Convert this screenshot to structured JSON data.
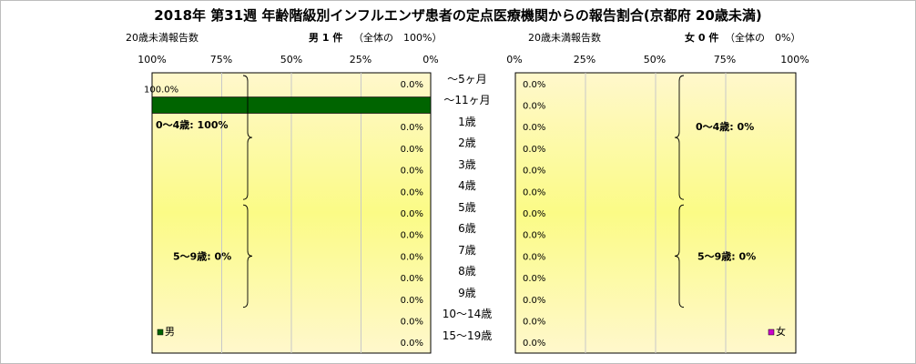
{
  "title": "2018年 第31週 年齢階級別インフルエンザ患者の定点医療機関からの報告割合(京都府 20歳未満)",
  "left_header": {
    "caption": "20歳未満報告数",
    "sex_count": "男 1 件",
    "total_share": "（全体の　100%）"
  },
  "right_header": {
    "caption": "20歳未満報告数",
    "sex_count": "女 0 件",
    "total_share": "（全体の　0%）"
  },
  "colors": {
    "male": "#006400",
    "female": "#cc00cc",
    "panel_edge": "#fff8cc",
    "panel_center": "#fbfb86",
    "grid": "#c8c8c8"
  },
  "chart_data": [
    {
      "type": "bar",
      "orientation": "horizontal",
      "direction": "right-to-left",
      "categories": [
        "～5ヶ月",
        "～11ヶ月",
        "1歳",
        "2歳",
        "3歳",
        "4歳",
        "5歳",
        "6歳",
        "7歳",
        "8歳",
        "9歳",
        "10～14歳",
        "15～19歳"
      ],
      "series": [
        {
          "name": "男",
          "values": [
            0,
            100,
            0,
            0,
            0,
            0,
            0,
            0,
            0,
            0,
            0,
            0,
            0
          ],
          "labels": [
            "0.0%",
            "100.0%",
            "0.0%",
            "0.0%",
            "0.0%",
            "0.0%",
            "0.0%",
            "0.0%",
            "0.0%",
            "0.0%",
            "0.0%",
            "0.0%",
            "0.0%"
          ]
        }
      ],
      "xlim": [
        0,
        100
      ],
      "xticks": [
        "100%",
        "75%",
        "50%",
        "25%",
        "0%"
      ],
      "grid": true,
      "legend": "bottom-left",
      "group_labels": [
        "0～4歳: 100%",
        "5～9歳: 0%"
      ]
    },
    {
      "type": "bar",
      "orientation": "horizontal",
      "direction": "left-to-right",
      "categories": [
        "～5ヶ月",
        "～11ヶ月",
        "1歳",
        "2歳",
        "3歳",
        "4歳",
        "5歳",
        "6歳",
        "7歳",
        "8歳",
        "9歳",
        "10～14歳",
        "15～19歳"
      ],
      "series": [
        {
          "name": "女",
          "values": [
            0,
            0,
            0,
            0,
            0,
            0,
            0,
            0,
            0,
            0,
            0,
            0,
            0
          ],
          "labels": [
            "0.0%",
            "0.0%",
            "0.0%",
            "0.0%",
            "0.0%",
            "0.0%",
            "0.0%",
            "0.0%",
            "0.0%",
            "0.0%",
            "0.0%",
            "0.0%",
            "0.0%"
          ]
        }
      ],
      "xlim": [
        0,
        100
      ],
      "xticks": [
        "0%",
        "25%",
        "50%",
        "75%",
        "100%"
      ],
      "grid": true,
      "legend": "bottom-right",
      "group_labels": [
        "0～4歳: 0%",
        "5～9歳: 0%"
      ]
    }
  ]
}
